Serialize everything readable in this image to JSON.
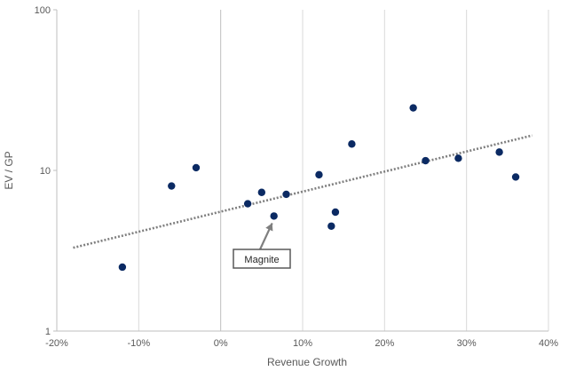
{
  "chart_data": {
    "type": "scatter",
    "title": "",
    "xlabel": "Revenue Growth",
    "ylabel": "EV / GP",
    "xlim": [
      -20,
      40
    ],
    "ylim": [
      1,
      100
    ],
    "y_scale": "log",
    "x_ticks": [
      -20,
      -10,
      0,
      10,
      20,
      30,
      40
    ],
    "x_tick_labels": [
      "-20%",
      "-10%",
      "0%",
      "10%",
      "20%",
      "30%",
      "40%"
    ],
    "y_ticks": [
      1,
      10,
      100
    ],
    "y_tick_labels": [
      "1",
      "10",
      "100"
    ],
    "grid": "vertical",
    "legend": "none",
    "point_color": "#0b2a63",
    "trendline": {
      "style": "dotted",
      "color": "#7f7f7f",
      "x": [
        -18,
        38
      ],
      "y": [
        3.3,
        16.5
      ]
    },
    "points": [
      {
        "x": -12,
        "y": 2.5
      },
      {
        "x": -6,
        "y": 8.0
      },
      {
        "x": -3,
        "y": 10.4
      },
      {
        "x": 3.3,
        "y": 6.2
      },
      {
        "x": 5,
        "y": 7.3
      },
      {
        "x": 6.5,
        "y": 5.2
      },
      {
        "x": 8,
        "y": 7.1
      },
      {
        "x": 12,
        "y": 9.4
      },
      {
        "x": 13.5,
        "y": 4.5
      },
      {
        "x": 14,
        "y": 5.5
      },
      {
        "x": 16,
        "y": 14.6
      },
      {
        "x": 23.5,
        "y": 24.5
      },
      {
        "x": 25,
        "y": 11.5
      },
      {
        "x": 29,
        "y": 11.9
      },
      {
        "x": 34,
        "y": 13.0
      },
      {
        "x": 36,
        "y": 9.1
      }
    ],
    "annotation": {
      "text": "Magnite",
      "point_x": 6.5,
      "point_y": 5.2
    }
  }
}
